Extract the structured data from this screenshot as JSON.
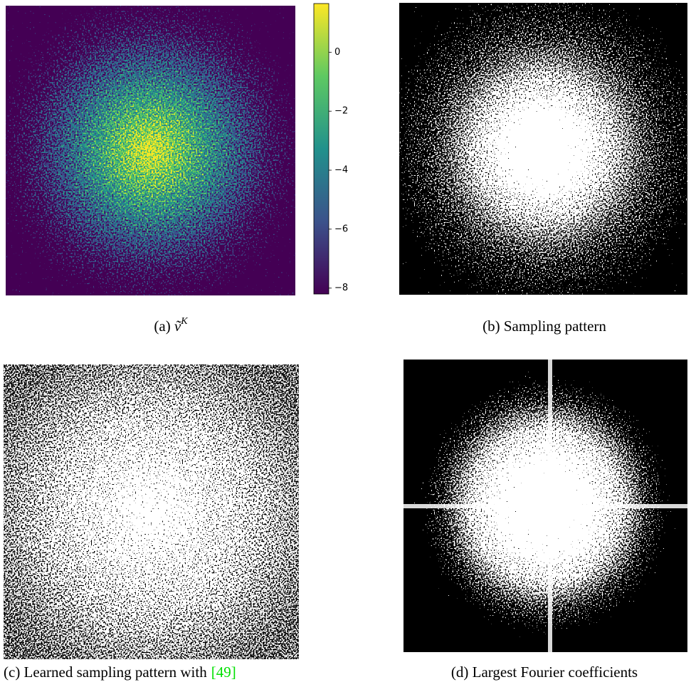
{
  "panels": [
    {
      "label": "(a)",
      "symbol": "ṽ",
      "superscript": "K",
      "colorbar": {
        "range": [
          -8.2,
          1.65
        ],
        "ticks": [
          0,
          {
            "value": -2,
            "label": "−2"
          },
          {
            "value": -4,
            "label": "−4"
          },
          {
            "value": -6,
            "label": "−6"
          },
          {
            "value": -8,
            "label": "−8"
          }
        ]
      }
    },
    {
      "caption": "(b) Sampling pattern"
    },
    {
      "caption": "(c) Learned sampling pattern with",
      "citation": "[49]"
    },
    {
      "caption": "(d) Largest Fourier coefficients"
    }
  ]
}
